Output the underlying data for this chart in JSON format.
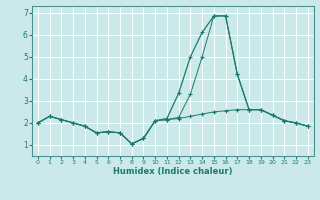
{
  "xlabel": "Humidex (Indice chaleur)",
  "bg_color": "#cce9ea",
  "grid_color": "#ffffff",
  "line_color": "#1a7a6e",
  "xlim": [
    -0.5,
    23.5
  ],
  "ylim": [
    0.5,
    7.3
  ],
  "yticks": [
    1,
    2,
    3,
    4,
    5,
    6,
    7
  ],
  "xticks": [
    0,
    1,
    2,
    3,
    4,
    5,
    6,
    7,
    8,
    9,
    10,
    11,
    12,
    13,
    14,
    15,
    16,
    17,
    18,
    19,
    20,
    21,
    22,
    23
  ],
  "series": {
    "line1_x": [
      0,
      1,
      2,
      3,
      4,
      5,
      6,
      7,
      8,
      9,
      10,
      11,
      12,
      13,
      14,
      15,
      16,
      17,
      18,
      19,
      20,
      21,
      22,
      23
    ],
    "line1_y": [
      2.0,
      2.3,
      2.15,
      2.0,
      1.85,
      1.55,
      1.6,
      1.55,
      1.05,
      1.3,
      2.1,
      2.15,
      2.2,
      2.3,
      2.4,
      2.5,
      2.55,
      2.6,
      2.6,
      2.6,
      2.35,
      2.1,
      2.0,
      1.85
    ],
    "line2_x": [
      0,
      1,
      2,
      3,
      4,
      5,
      6,
      7,
      8,
      9,
      10,
      11,
      12,
      13,
      14,
      15,
      16,
      17,
      18,
      19,
      20,
      21,
      22,
      23
    ],
    "line2_y": [
      2.0,
      2.3,
      2.15,
      2.0,
      1.85,
      1.55,
      1.6,
      1.55,
      1.05,
      1.3,
      2.1,
      2.2,
      3.35,
      5.0,
      6.1,
      6.85,
      6.85,
      4.2,
      2.6,
      2.6,
      2.35,
      2.1,
      2.0,
      1.85
    ],
    "line3_x": [
      0,
      1,
      2,
      3,
      4,
      5,
      6,
      7,
      8,
      9,
      10,
      11,
      12,
      13,
      14,
      15,
      16,
      17,
      18,
      19,
      20,
      21,
      22,
      23
    ],
    "line3_y": [
      2.0,
      2.3,
      2.15,
      2.0,
      1.85,
      1.55,
      1.6,
      1.55,
      1.05,
      1.3,
      2.1,
      2.15,
      2.25,
      3.3,
      5.0,
      6.85,
      6.85,
      4.2,
      2.6,
      2.6,
      2.35,
      2.1,
      2.0,
      1.85
    ]
  }
}
